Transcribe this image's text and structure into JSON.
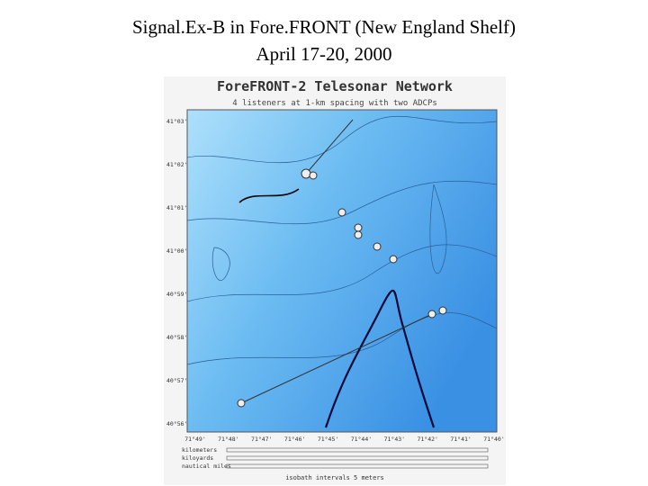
{
  "header": {
    "title": "Signal.Ex-B in Fore.FRONT (New England Shelf)",
    "subtitle": "April 17-20, 2000"
  },
  "map": {
    "title": "ForeFRONT-2 Telesonar Network",
    "subtitle": "4 listeners at 1-km spacing with two ADCPs",
    "lat_labels": [
      "41°03'",
      "41°02'",
      "41°01'",
      "41°00'",
      "40°59'",
      "40°58'",
      "40°57'",
      "40°56'"
    ],
    "lon_labels": [
      "71°49'",
      "71°48'",
      "71°47'",
      "71°46'",
      "71°45'",
      "71°44'",
      "71°43'",
      "71°42'",
      "71°41'",
      "71°40'"
    ],
    "scale_labels": [
      "kilometers",
      "kiloyards",
      "nautical miles"
    ],
    "isobath_note": "isobath intervals 5 meters"
  }
}
